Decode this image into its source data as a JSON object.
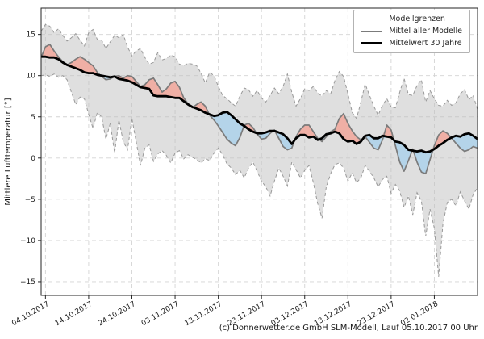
{
  "chart_data": {
    "type": "line",
    "title": "",
    "ylabel": "Mittlere Lufttemperatur [°]",
    "caption": "(c) Donnerwetter.de GmbH SLM-Modell, Lauf 05.10.2017 00 Uhr",
    "grid": true,
    "xlim_day_index": [
      0,
      101
    ],
    "ylim": [
      -16.6,
      18.2
    ],
    "x_tick_positions": [
      1,
      11,
      21,
      31,
      41,
      51,
      61,
      71,
      81,
      91
    ],
    "x_tick_labels": [
      "04.10.2017",
      "14.10.2017",
      "24.10.2017",
      "03.11.2017",
      "13.11.2017",
      "23.11.2017",
      "03.12.2017",
      "13.12.2017",
      "23.12.2017",
      "02.01.2018"
    ],
    "y_tick_values": [
      15,
      10,
      5,
      0,
      -5,
      -10,
      -15
    ],
    "y_tick_labels": [
      "15",
      "10",
      "5",
      "0",
      "−5",
      "−10",
      "−15"
    ],
    "legend": {
      "position": "upper right",
      "entries": [
        {
          "label": "Modellgrenzen",
          "style": "dashed-gray-line"
        },
        {
          "label": "Mittel aller Modelle",
          "style": "solid-gray-line"
        },
        {
          "label": "Mittelwert 30 Jahre",
          "style": "thick-black-line"
        }
      ]
    },
    "colors": {
      "model_range_band": "#bfbfbf",
      "band_opacity": 0.5,
      "bounds_line": "#999999",
      "model_mean_line": "#7b7b7b",
      "mean_30yr_line": "#000000",
      "above_normal_fill": "#efafa5",
      "below_normal_fill": "#b4d4e9",
      "grid_line": "#d4d4d4",
      "frame": "#262626"
    },
    "series": [
      {
        "name": "Modellgrenzen (obere Grenze)",
        "role": "upper_bound",
        "values": [
          15.4,
          16.2,
          16.0,
          15.2,
          15.7,
          14.9,
          14.2,
          14.6,
          15.1,
          14.3,
          13.6,
          15.2,
          15.6,
          14.4,
          14.3,
          13.3,
          14.1,
          14.9,
          14.6,
          15.0,
          13.5,
          12.4,
          13.0,
          13.3,
          12.2,
          11.4,
          11.6,
          12.8,
          11.9,
          12.1,
          12.5,
          12.3,
          11.4,
          11.2,
          11.5,
          11.4,
          11.2,
          10.3,
          9.1,
          10.4,
          10.0,
          8.7,
          7.6,
          7.2,
          6.7,
          6.3,
          7.5,
          8.5,
          8.3,
          7.5,
          8.2,
          7.3,
          6.8,
          7.6,
          8.5,
          7.8,
          8.7,
          10.2,
          8.0,
          6.3,
          7.2,
          8.4,
          8.2,
          8.7,
          7.9,
          7.5,
          8.2,
          7.8,
          9.4,
          10.5,
          9.9,
          7.8,
          5.5,
          4.8,
          6.8,
          9.0,
          7.6,
          6.3,
          5.2,
          6.4,
          7.2,
          6.2,
          6.1,
          8.0,
          9.7,
          7.7,
          7.6,
          8.8,
          9.5,
          6.8,
          8.2,
          7.2,
          6.4,
          6.3,
          7.0,
          6.4,
          6.7,
          7.8,
          8.3,
          7.1,
          7.6,
          5.9
        ]
      },
      {
        "name": "Modellgrenzen (untere Grenze)",
        "role": "lower_bound",
        "values": [
          10.0,
          10.1,
          9.9,
          10.2,
          9.8,
          10.0,
          9.5,
          8.0,
          6.5,
          7.4,
          7.2,
          5.3,
          3.6,
          5.5,
          5.0,
          2.3,
          4.2,
          0.6,
          4.6,
          2.0,
          1.0,
          4.8,
          2.0,
          -0.9,
          1.2,
          1.6,
          -0.4,
          0.5,
          0.9,
          0.3,
          -0.6,
          0.6,
          0.9,
          -0.1,
          0.4,
          0.1,
          -0.2,
          -0.6,
          -0.1,
          -0.3,
          0.6,
          1.2,
          0.4,
          -0.7,
          -1.2,
          -2.0,
          -1.5,
          -2.4,
          -1.2,
          -0.5,
          -1.6,
          -2.8,
          -3.5,
          -4.6,
          -2.8,
          -1.2,
          -2.2,
          -3.4,
          -0.5,
          -1.4,
          -2.4,
          -1.5,
          -0.9,
          -3.0,
          -5.5,
          -7.3,
          -3.5,
          -1.9,
          -0.8,
          -0.6,
          -1.2,
          -2.8,
          -1.8,
          -3.0,
          -2.4,
          -0.9,
          -1.6,
          -2.4,
          -3.5,
          -2.6,
          -2.2,
          -4.3,
          -3.2,
          -4.0,
          -6.0,
          -4.6,
          -6.9,
          -4.2,
          -5.2,
          -9.5,
          -6.2,
          -8.5,
          -14.4,
          -8.0,
          -5.4,
          -5.0,
          -5.8,
          -4.1,
          -5.2,
          -6.2,
          -4.4,
          -3.6
        ]
      },
      {
        "name": "Mittel aller Modelle",
        "role": "model_mean",
        "values": [
          12.2,
          13.5,
          13.8,
          13.0,
          12.3,
          11.7,
          11.3,
          11.6,
          12.0,
          12.3,
          12.0,
          11.6,
          11.2,
          10.4,
          9.9,
          9.5,
          9.6,
          9.9,
          10.0,
          9.7,
          10.0,
          9.9,
          9.3,
          8.7,
          8.9,
          9.5,
          9.7,
          8.9,
          8.0,
          8.4,
          9.1,
          9.3,
          8.6,
          7.3,
          6.6,
          6.1,
          6.5,
          6.8,
          6.3,
          5.2,
          4.6,
          3.9,
          3.1,
          2.3,
          1.8,
          1.5,
          2.5,
          4.0,
          4.2,
          3.7,
          2.9,
          2.3,
          2.4,
          3.0,
          3.4,
          2.4,
          1.4,
          1.0,
          1.2,
          2.6,
          3.5,
          4.0,
          4.0,
          3.2,
          2.4,
          2.0,
          2.6,
          3.2,
          3.5,
          4.8,
          5.4,
          4.2,
          3.3,
          2.6,
          2.2,
          2.6,
          1.9,
          1.2,
          1.0,
          2.2,
          4.0,
          3.4,
          1.5,
          -0.5,
          -1.6,
          -0.3,
          1.1,
          -0.5,
          -1.7,
          -1.9,
          -0.2,
          1.5,
          2.8,
          3.3,
          3.0,
          2.4,
          1.8,
          1.2,
          0.8,
          1.0,
          1.4,
          1.2
        ]
      },
      {
        "name": "Mittelwert 30 Jahre",
        "role": "mean_30yr",
        "values": [
          12.3,
          12.3,
          12.2,
          12.2,
          12.0,
          11.6,
          11.3,
          11.1,
          10.9,
          10.7,
          10.4,
          10.3,
          10.3,
          10.1,
          10.0,
          9.9,
          9.8,
          9.9,
          9.6,
          9.5,
          9.4,
          9.2,
          8.9,
          8.6,
          8.5,
          8.4,
          7.6,
          7.5,
          7.5,
          7.5,
          7.4,
          7.3,
          7.3,
          6.9,
          6.5,
          6.2,
          6.0,
          5.8,
          5.5,
          5.3,
          5.1,
          5.2,
          5.5,
          5.6,
          5.2,
          4.7,
          4.2,
          3.9,
          3.5,
          3.2,
          3.0,
          3.0,
          3.1,
          3.3,
          3.3,
          3.1,
          2.9,
          2.4,
          1.7,
          2.4,
          2.8,
          2.8,
          2.5,
          2.6,
          2.2,
          2.4,
          2.9,
          3.0,
          3.2,
          3.0,
          2.3,
          2.0,
          2.1,
          1.7,
          2.0,
          2.7,
          2.8,
          2.4,
          2.4,
          2.7,
          2.6,
          2.5,
          2.0,
          1.9,
          1.6,
          1.0,
          0.9,
          0.8,
          0.9,
          0.7,
          0.8,
          1.1,
          1.5,
          1.8,
          2.2,
          2.5,
          2.7,
          2.6,
          2.9,
          3.0,
          2.7,
          2.3
        ]
      }
    ]
  }
}
